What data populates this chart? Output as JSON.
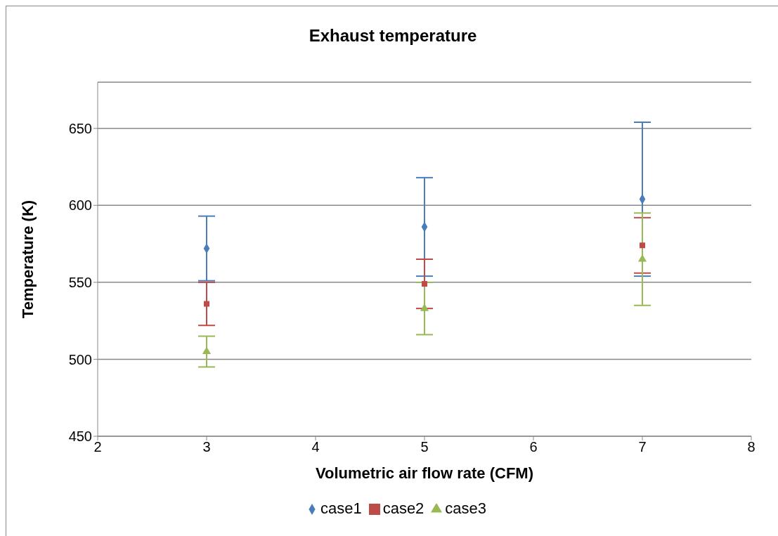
{
  "chart_data": {
    "type": "scatter",
    "title": "Exhaust temperature",
    "xlabel": "Volumetric air flow rate (CFM)",
    "ylabel": "Temperature (K)",
    "x": [
      3,
      5,
      7
    ],
    "series": [
      {
        "name": "case1",
        "color": "#4a7ebb",
        "marker": "diamond",
        "values": [
          572,
          586,
          604
        ],
        "errors": [
          21,
          32,
          50
        ]
      },
      {
        "name": "case2",
        "color": "#be4b48",
        "marker": "square",
        "values": [
          536,
          549,
          574
        ],
        "errors": [
          14,
          16,
          18
        ]
      },
      {
        "name": "case3",
        "color": "#98b954",
        "marker": "triangle",
        "values": [
          505,
          533,
          565
        ],
        "errors": [
          10,
          17,
          30
        ]
      }
    ],
    "xlim": [
      2,
      8
    ],
    "xticks": [
      2,
      3,
      4,
      5,
      6,
      7,
      8
    ],
    "ylim": [
      450,
      680
    ],
    "yticks": [
      450,
      500,
      550,
      600,
      650
    ],
    "grid": "y",
    "legend": "bottom"
  }
}
